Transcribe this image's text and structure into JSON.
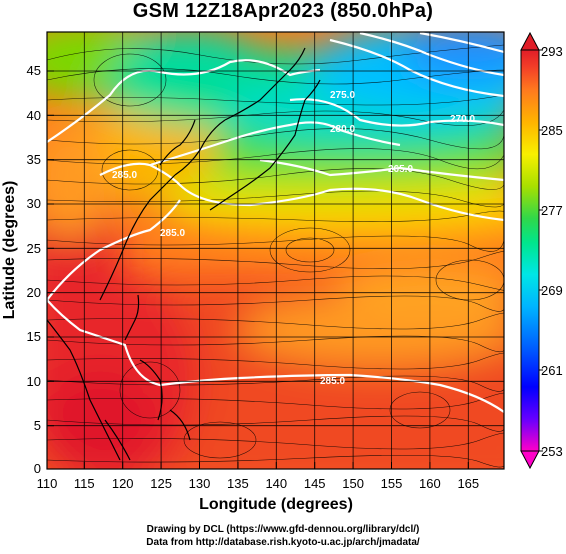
{
  "title": "GSM 12Z18Apr2023 (850.0hPa)",
  "axes": {
    "xlabel": "Longitude (degrees)",
    "ylabel": "Latitude (degrees)",
    "xticks": [
      "110",
      "115",
      "120",
      "125",
      "130",
      "135",
      "140",
      "145",
      "150",
      "155",
      "160",
      "165"
    ],
    "yticks": [
      "0",
      "5",
      "10",
      "15",
      "20",
      "25",
      "30",
      "35",
      "40",
      "45"
    ]
  },
  "colorbar": {
    "labels": [
      "293",
      "285",
      "277",
      "269",
      "261",
      "253"
    ],
    "gradient": [
      "#ff00c8",
      "#6600ff",
      "#0000ff",
      "#0060ff",
      "#00b4ff",
      "#00e6e6",
      "#00e68c",
      "#30d84a",
      "#a8e000",
      "#f8f000",
      "#ffb400",
      "#ff7a1e",
      "#f23c28",
      "#e01e28"
    ]
  },
  "contour_labels": [
    "285.0",
    "280.0",
    "275.0",
    "270.0",
    "265.0",
    "285.0",
    "285.0"
  ],
  "credits": {
    "line1": "Drawing by DCL (https://www.gfd-dennou.org/library/dcl/)",
    "line2": "Data from http://database.rish.kyoto-u.ac.jp/arch/jmadata/"
  },
  "colors": {
    "contour": "#ffffff",
    "coast": "#000000",
    "grid": "#000000"
  }
}
